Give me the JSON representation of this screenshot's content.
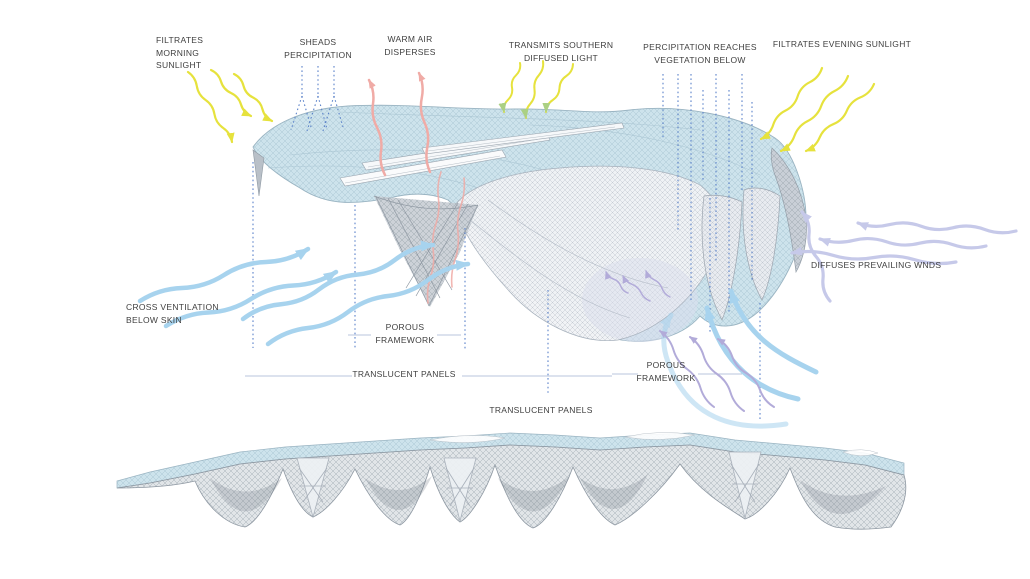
{
  "labels": {
    "filtrates_morning_sunlight": "FILTRATES\nMORNING\nSUNLIGHT",
    "sheads_percipitation": "SHEADS\nPERCIPITATION",
    "warm_air_disperses": "WARM AIR\nDISPERSES",
    "transmits_southern_diffused_light": "TRANSMITS SOUTHERN\nDIFFUSED LIGHT",
    "percipitation_reaches_vegetation_below": "PERCIPITATION REACHES\nVEGETATION BELOW",
    "filtrates_evening_sunlight": "FILTRATES EVENING SUNLIGHT",
    "diffuses_prevailing_wnds": "DIFFUSES PREVAILING WNDS",
    "cross_ventilation_below_skin": "CROSS VENTILATION\nBELOW SKIN",
    "porous_framework_left": "POROUS\nFRAMEWORK",
    "translucent_panels_upper": "TRANSLUCENT PANELS",
    "porous_framework_right": "POROUS\nFRAMEWORK",
    "translucent_panels_lower": "TRANSLUCENT PANELS"
  },
  "colors": {
    "sunlight": "#e6e23d",
    "southern_light_head": "#abd084",
    "warm_air": "#f0aba6",
    "ventilation": "#a7d3ee",
    "prevailing_wind": "#c6c9e9",
    "porous_flow": "#b2abd9",
    "guide_dotted": "#5b82c9",
    "leader_line": "#b9c6de",
    "panel_blue": "#cde3ec",
    "panel_edge": "#9ab4c2",
    "mesh_gray": "#99a3ad",
    "text": "#3f3f3f"
  }
}
